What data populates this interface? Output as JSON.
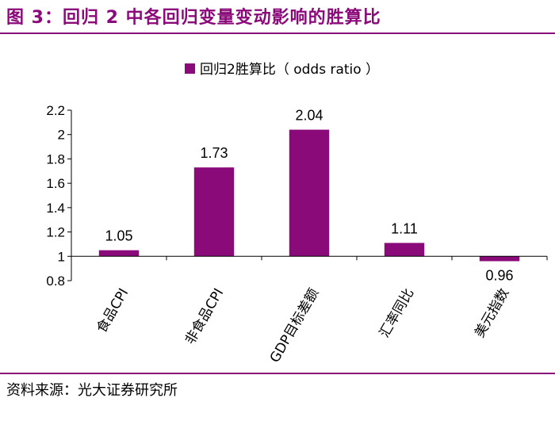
{
  "figure": {
    "title": "图 3：回归 2 中各回归变量变动影响的胜算比",
    "source": "资料来源：光大证券研究所"
  },
  "colors": {
    "accent": "#8B0A7A",
    "bar": "#8B0A7A"
  },
  "chart_data": {
    "type": "bar",
    "categories": [
      "食品CPI",
      "非食品CPI",
      "GDP目标差额",
      "汇率同比",
      "美元指数"
    ],
    "series": [
      {
        "name": "回归2胜算比（ odds ratio ）",
        "values": [
          1.05,
          1.73,
          2.04,
          1.11,
          0.96
        ]
      }
    ],
    "data_labels": [
      "1.05",
      "1.73",
      "2.04",
      "1.11",
      "0.96"
    ],
    "ylim": [
      0.8,
      2.2
    ],
    "yticks": [
      "0.8",
      "1",
      "1.2",
      "1.4",
      "1.6",
      "1.8",
      "2",
      "2.2"
    ],
    "baseline": 1,
    "grid": false,
    "legend": "top-center"
  }
}
